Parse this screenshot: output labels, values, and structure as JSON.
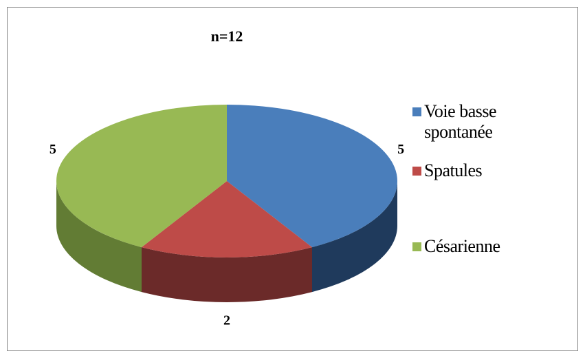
{
  "chart_data": {
    "type": "pie",
    "title": "n=12",
    "categories": [
      "Voie basse spontanée",
      "Spatules",
      "Césarienne"
    ],
    "values": [
      5,
      2,
      5
    ],
    "colors": [
      "#4a7ebb",
      "#be4b48",
      "#98b954"
    ],
    "side_colors": [
      "#1f3a5c",
      "#6b2a29",
      "#627c34"
    ],
    "legend": "right"
  }
}
